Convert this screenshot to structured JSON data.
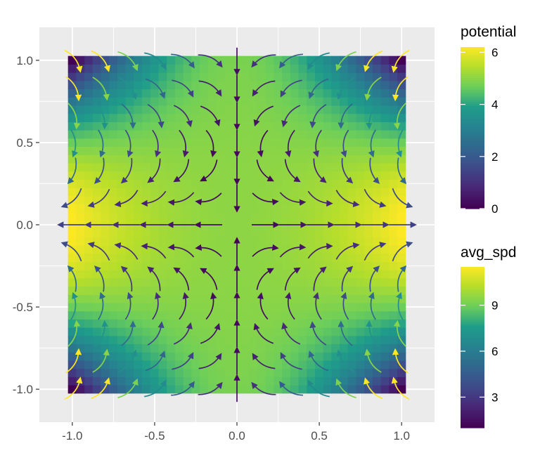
{
  "chart_data": {
    "type": "heatmap",
    "title": "",
    "xlabel": "",
    "ylabel": "",
    "xlim": [
      -1.2,
      1.2
    ],
    "ylim": [
      -1.2,
      1.2
    ],
    "x_ticks": [
      -1.0,
      -0.5,
      0.0,
      0.5,
      1.0
    ],
    "y_ticks": [
      -1.0,
      -0.5,
      0.0,
      0.5,
      1.0
    ],
    "x_tick_labels": [
      "-1.0",
      "-0.5",
      "0.0",
      "0.5",
      "1.0"
    ],
    "y_tick_labels": [
      "-1.0",
      "-0.5",
      "0.0",
      "0.5",
      "1.0"
    ],
    "grid": true,
    "raster": {
      "fill": "potential",
      "x_range": [
        -1.0,
        1.0
      ],
      "y_range": [
        -1.0,
        1.0
      ],
      "n": 41,
      "corner_value": 0.0,
      "edge_midpoint_x_value": 6.2,
      "edge_midpoint_y_value": 4.8,
      "center_value": 5.0
    },
    "vector_field": {
      "color": "avg_spd",
      "grid": [
        -1.0,
        -0.8333,
        -0.6667,
        -0.5,
        -0.3333,
        -0.1667,
        0.0,
        0.1667,
        0.3333,
        0.5,
        0.6667,
        0.8333,
        1.0
      ],
      "description_source": "streamline arrows"
    },
    "legends": [
      {
        "title": "potential",
        "type": "colorbar",
        "range": [
          0,
          6.2
        ],
        "ticks": [
          0,
          2,
          4,
          6
        ],
        "tick_labels": [
          "0",
          "2",
          "4",
          "6"
        ]
      },
      {
        "title": "avg_spd",
        "type": "colorbar",
        "range": [
          1.0,
          11.5
        ],
        "ticks": [
          3,
          6,
          9
        ],
        "tick_labels": [
          "3",
          "6",
          "9"
        ]
      }
    ],
    "palette": [
      "#440154",
      "#482777",
      "#3f4a8a",
      "#31678e",
      "#26838f",
      "#1f9d8a",
      "#6cce5a",
      "#b6de2b",
      "#fee825"
    ],
    "panel_background": "#ebebeb",
    "gridline_color": "#ffffff"
  }
}
